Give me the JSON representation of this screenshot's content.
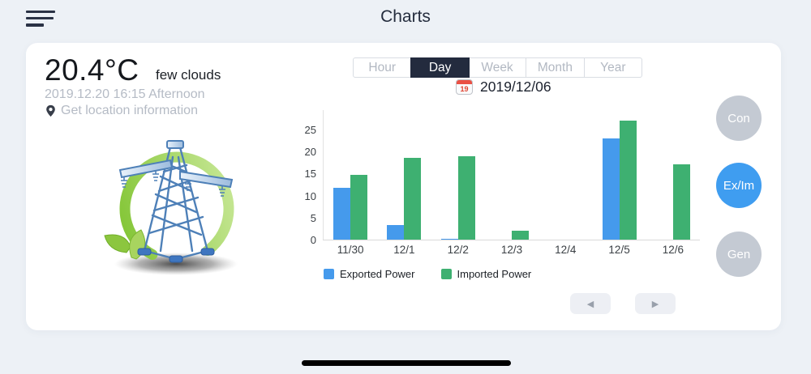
{
  "header": {
    "title": "Charts"
  },
  "weather": {
    "temperature": "20.4°C",
    "condition": "few clouds",
    "datetime": "2019.12.20 16:15 Afternoon",
    "location_link": "Get location information"
  },
  "tabs": [
    {
      "label": "Hour",
      "selected": false
    },
    {
      "label": "Day",
      "selected": true
    },
    {
      "label": "Week",
      "selected": false
    },
    {
      "label": "Month",
      "selected": false
    },
    {
      "label": "Year",
      "selected": false
    }
  ],
  "date_picker": {
    "date": "2019/12/06",
    "calendar_day": "19"
  },
  "chart_data": {
    "type": "bar",
    "title": "",
    "categories": [
      "11/30",
      "12/1",
      "12/2",
      "12/3",
      "12/4",
      "12/5",
      "12/6"
    ],
    "series": [
      {
        "name": "Exported Power",
        "color": "#459aec",
        "values": [
          11.8,
          3.3,
          0.2,
          0,
          0,
          23,
          0
        ]
      },
      {
        "name": "Imported Power",
        "color": "#3eb071",
        "values": [
          14.7,
          18.6,
          19,
          2,
          0,
          27,
          17
        ]
      }
    ],
    "yticks": [
      0,
      5,
      10,
      15,
      20,
      25
    ],
    "ylim": [
      0,
      29.4
    ],
    "grid": false,
    "legend_position": "bottom"
  },
  "side_buttons": [
    {
      "label": "Con",
      "active": false
    },
    {
      "label": "Ex/Im",
      "active": true
    },
    {
      "label": "Gen",
      "active": false
    }
  ],
  "pager": {
    "prev_icon": "◀",
    "next_icon": "▶"
  },
  "system": {
    "home_indicator": true
  },
  "icons": {
    "menu": "hamburger-menu",
    "location": "location-pin",
    "calendar": "calendar-page",
    "illustration": "power-transmission-tower"
  },
  "colors": {
    "page_bg": "#edf1f6",
    "card_bg": "#ffffff",
    "selected_tab": "#232b3e",
    "muted_text": "#b5bbc5",
    "bar_blue": "#459aec",
    "bar_green": "#3eb071",
    "circle_active": "#3f9df0",
    "circle_inactive": "#c4cad3"
  }
}
